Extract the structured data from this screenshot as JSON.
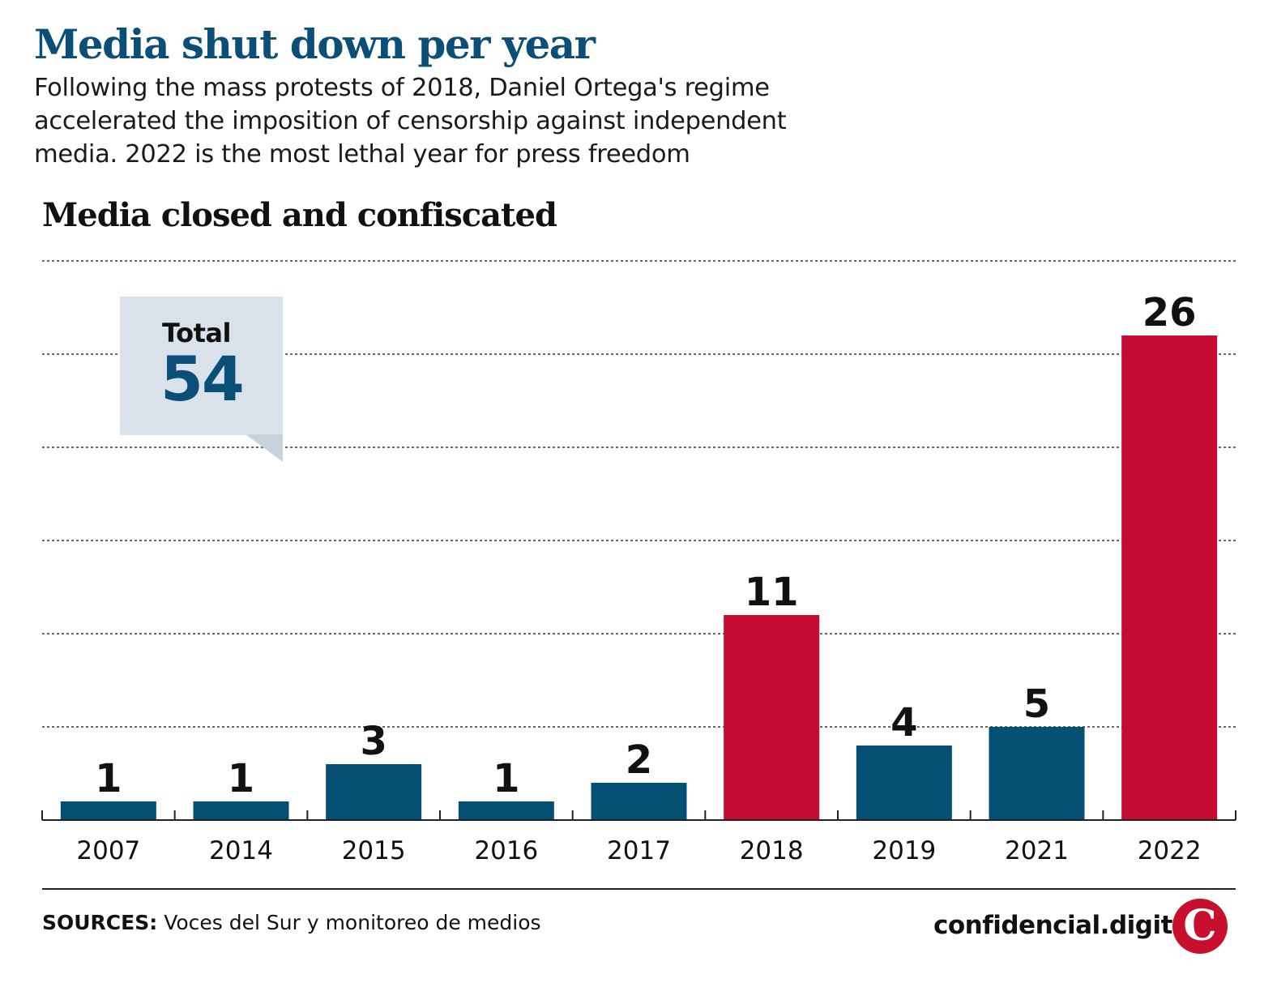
{
  "header": {
    "title": "Media shut down per year",
    "subtitle": "Following the mass protests of 2018, Daniel Ortega's regime accelerated the imposition of censorship against independent media. 2022 is the most lethal year for press freedom"
  },
  "chart_data": {
    "type": "bar",
    "title": "Media closed and confiscated",
    "categories": [
      "2007",
      "2014",
      "2015",
      "2016",
      "2017",
      "2018",
      "2019",
      "2021",
      "2022"
    ],
    "values": [
      1,
      1,
      3,
      1,
      2,
      11,
      4,
      5,
      26
    ],
    "highlighted": [
      "2018",
      "2022"
    ],
    "ylim": [
      0,
      30
    ],
    "grid": true,
    "xlabel": "",
    "ylabel": ""
  },
  "colors": {
    "title": "#0b4f78",
    "bar_default": "#054e74",
    "bar_highlight": "#c60c30",
    "callout_bg": "#d9e2eb"
  },
  "callout": {
    "label": "Total",
    "value": "54"
  },
  "footer": {
    "sources_label": "SOURCES:",
    "sources_text": "Voces del Sur y monitoreo de medios",
    "brand": "confidencial.digital",
    "logo_letter": "C"
  }
}
